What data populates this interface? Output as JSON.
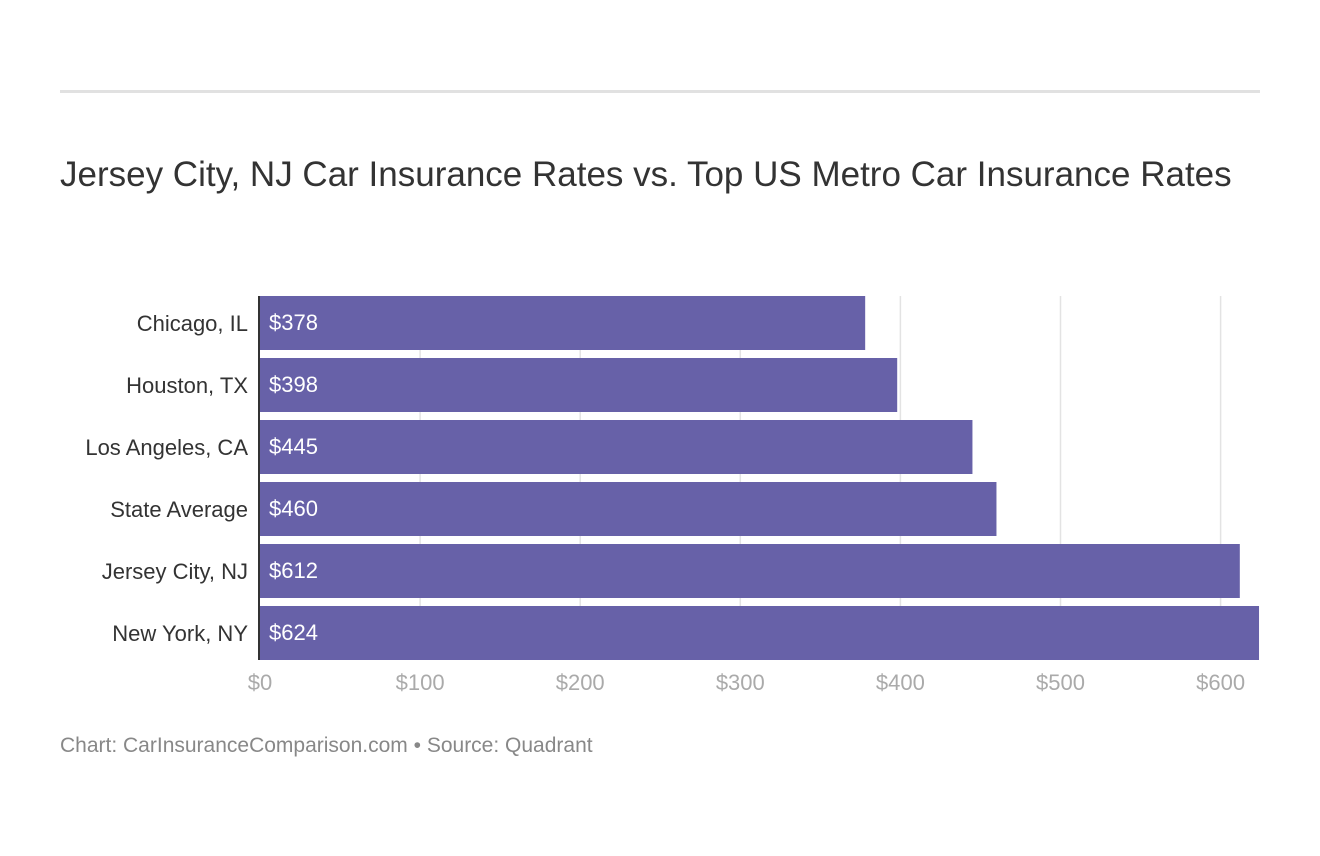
{
  "title": "Jersey City, NJ Car Insurance Rates vs. Top US Metro Car Insurance Rates",
  "footer": "Chart: CarInsuranceComparison.com • Source: Quadrant",
  "chart_data": {
    "type": "bar",
    "orientation": "horizontal",
    "title": "Jersey City, NJ Car Insurance Rates vs. Top US Metro Car Insurance Rates",
    "categories": [
      "Chicago, IL",
      "Houston, TX",
      "Los Angeles, CA",
      "State Average",
      "Jersey City, NJ",
      "New York, NY"
    ],
    "values": [
      378,
      398,
      445,
      460,
      612,
      624
    ],
    "value_labels": [
      "$378",
      "$398",
      "$445",
      "$460",
      "$612",
      "$624"
    ],
    "xticks": [
      0,
      100,
      200,
      300,
      400,
      500,
      600
    ],
    "xtick_labels": [
      "$0",
      "$100",
      "$200",
      "$300",
      "$400",
      "$500",
      "$600"
    ],
    "xlim": [
      0,
      624
    ],
    "xlabel": "",
    "ylabel": "",
    "grid": true,
    "bar_color": "#6761a8"
  }
}
